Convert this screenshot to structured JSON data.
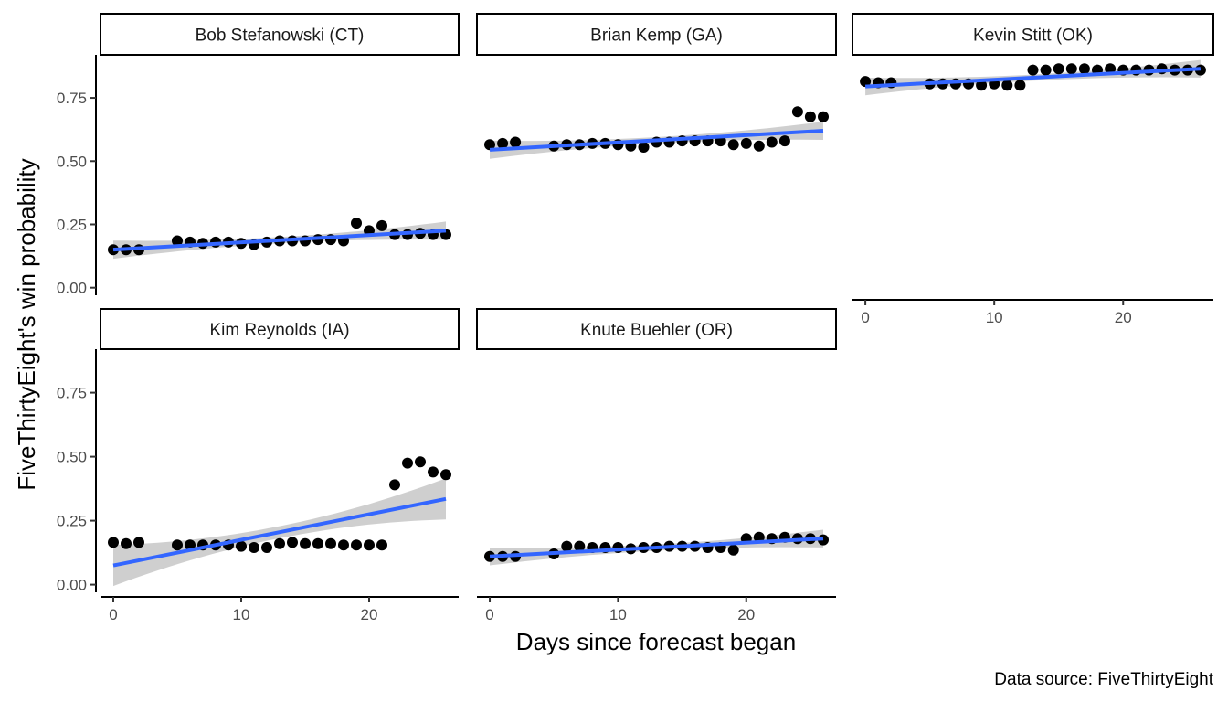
{
  "chart_data": {
    "type": "scatter",
    "ylabel": "FiveThirtyEight's win probability",
    "xlabel": "Days since forecast began",
    "caption": "Data source: FiveThirtyEight",
    "xlim": [
      -1,
      27
    ],
    "ylim": [
      -0.03,
      0.92
    ],
    "x_ticks": [
      0,
      10,
      20
    ],
    "x_tick_labels": [
      "0",
      "10",
      "20"
    ],
    "y_ticks": [
      0,
      0.25,
      0.5,
      0.75
    ],
    "y_tick_labels": [
      "0.00",
      "0.25",
      "0.50",
      "0.75"
    ],
    "grid": false,
    "colors": {
      "points": "#000000",
      "trend": "#3366ff",
      "band": "#bfbfbf"
    },
    "panels": [
      {
        "name": "Bob Stefanowski (CT)",
        "x": [
          0,
          1,
          2,
          5,
          6,
          7,
          8,
          9,
          10,
          11,
          12,
          13,
          14,
          15,
          16,
          17,
          18,
          19,
          20,
          21,
          22,
          23,
          24,
          25,
          26
        ],
        "y": [
          0.15,
          0.15,
          0.15,
          0.185,
          0.18,
          0.175,
          0.18,
          0.18,
          0.175,
          0.17,
          0.18,
          0.185,
          0.185,
          0.185,
          0.19,
          0.19,
          0.185,
          0.255,
          0.225,
          0.245,
          0.21,
          0.21,
          0.215,
          0.21,
          0.21
        ],
        "trend": {
          "start": [
            0,
            0.15
          ],
          "end": [
            26,
            0.225
          ]
        }
      },
      {
        "name": "Brian Kemp (GA)",
        "x": [
          0,
          1,
          2,
          5,
          6,
          7,
          8,
          9,
          10,
          11,
          12,
          13,
          14,
          15,
          16,
          17,
          18,
          19,
          20,
          21,
          22,
          23,
          24,
          25,
          26
        ],
        "y": [
          0.565,
          0.57,
          0.575,
          0.56,
          0.565,
          0.565,
          0.57,
          0.57,
          0.565,
          0.56,
          0.555,
          0.575,
          0.575,
          0.58,
          0.58,
          0.58,
          0.58,
          0.565,
          0.57,
          0.56,
          0.575,
          0.58,
          0.695,
          0.675,
          0.675
        ],
        "trend": {
          "start": [
            0,
            0.545
          ],
          "end": [
            26,
            0.62
          ]
        }
      },
      {
        "name": "Kevin Stitt (OK)",
        "x": [
          0,
          1,
          2,
          5,
          6,
          7,
          8,
          9,
          10,
          11,
          12,
          13,
          14,
          15,
          16,
          17,
          18,
          19,
          20,
          21,
          22,
          23,
          24,
          25,
          26
        ],
        "y": [
          0.815,
          0.81,
          0.81,
          0.805,
          0.805,
          0.805,
          0.805,
          0.8,
          0.805,
          0.8,
          0.8,
          0.86,
          0.86,
          0.865,
          0.865,
          0.865,
          0.86,
          0.865,
          0.86,
          0.86,
          0.86,
          0.865,
          0.86,
          0.86,
          0.86
        ],
        "trend": {
          "start": [
            0,
            0.795
          ],
          "end": [
            26,
            0.865
          ]
        }
      },
      {
        "name": "Kim Reynolds (IA)",
        "x": [
          0,
          1,
          2,
          5,
          6,
          7,
          8,
          9,
          10,
          11,
          12,
          13,
          14,
          15,
          16,
          17,
          18,
          19,
          20,
          21,
          22,
          23,
          24,
          25,
          26
        ],
        "y": [
          0.165,
          0.16,
          0.165,
          0.155,
          0.155,
          0.155,
          0.155,
          0.155,
          0.15,
          0.145,
          0.145,
          0.16,
          0.165,
          0.16,
          0.16,
          0.16,
          0.155,
          0.155,
          0.155,
          0.155,
          0.39,
          0.475,
          0.48,
          0.44,
          0.43
        ],
        "trend": {
          "start": [
            0,
            0.075
          ],
          "end": [
            26,
            0.335
          ]
        }
      },
      {
        "name": "Knute Buehler (OR)",
        "x": [
          0,
          1,
          2,
          5,
          6,
          7,
          8,
          9,
          10,
          11,
          12,
          13,
          14,
          15,
          16,
          17,
          18,
          19,
          20,
          21,
          22,
          23,
          24,
          25,
          26
        ],
        "y": [
          0.11,
          0.11,
          0.11,
          0.12,
          0.15,
          0.15,
          0.145,
          0.145,
          0.145,
          0.14,
          0.145,
          0.145,
          0.15,
          0.15,
          0.15,
          0.145,
          0.145,
          0.135,
          0.18,
          0.185,
          0.18,
          0.185,
          0.18,
          0.18,
          0.175
        ],
        "trend": {
          "start": [
            0,
            0.11
          ],
          "end": [
            26,
            0.18
          ]
        }
      }
    ]
  }
}
